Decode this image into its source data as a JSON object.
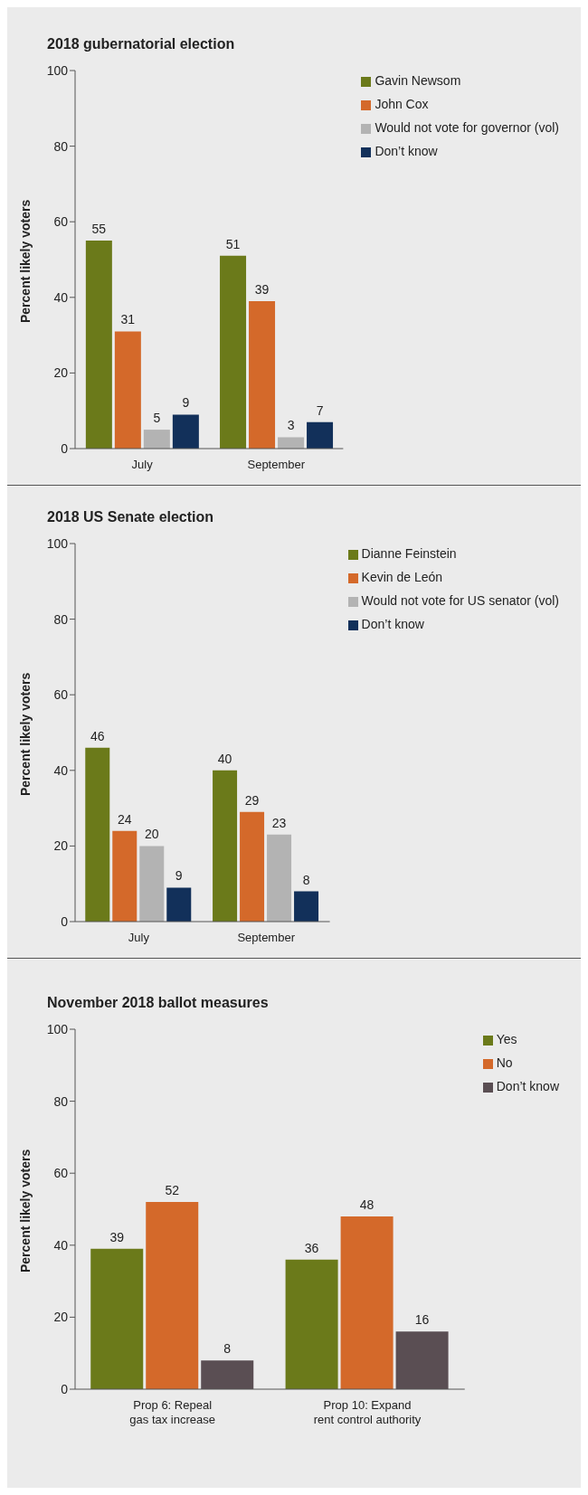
{
  "chart_data": [
    {
      "type": "bar",
      "title": "2018 gubernatorial election",
      "ylabel": "Percent likely voters",
      "categories": [
        "July",
        "September"
      ],
      "series": [
        {
          "name": "Gavin Newsom",
          "color": "#6b7a1a",
          "values": [
            55,
            51
          ]
        },
        {
          "name": "John Cox",
          "color": "#d4692a",
          "values": [
            31,
            39
          ]
        },
        {
          "name": "Would not vote for governor (vol)",
          "color": "#b3b3b3",
          "values": [
            5,
            3
          ]
        },
        {
          "name": "Don’t know",
          "color": "#12305a",
          "values": [
            9,
            7
          ]
        }
      ],
      "ylim": [
        0,
        100
      ],
      "yticks": [
        0,
        20,
        40,
        60,
        80,
        100
      ],
      "grid": false,
      "legend": "top right",
      "data_labels": true
    },
    {
      "type": "bar",
      "title": "2018 US Senate election",
      "ylabel": "Percent likely voters",
      "categories": [
        "July",
        "September"
      ],
      "series": [
        {
          "name": "Dianne Feinstein",
          "color": "#6b7a1a",
          "values": [
            46,
            40
          ]
        },
        {
          "name": "Kevin de León",
          "color": "#d4692a",
          "values": [
            24,
            29
          ]
        },
        {
          "name": "Would not vote for US senator (vol)",
          "color": "#b3b3b3",
          "values": [
            20,
            23
          ]
        },
        {
          "name": "Don’t know",
          "color": "#12305a",
          "values": [
            9,
            8
          ]
        }
      ],
      "ylim": [
        0,
        100
      ],
      "yticks": [
        0,
        20,
        40,
        60,
        80,
        100
      ],
      "grid": false,
      "legend": "top right",
      "data_labels": true
    },
    {
      "type": "bar",
      "title": "November 2018 ballot measures",
      "ylabel": "Percent likely voters",
      "categories": [
        "Prop 6: Repeal\ngas tax increase",
        "Prop 10: Expand\nrent control authority"
      ],
      "series": [
        {
          "name": "Yes",
          "color": "#6b7a1a",
          "values": [
            39,
            36
          ]
        },
        {
          "name": "No",
          "color": "#d4692a",
          "values": [
            52,
            48
          ]
        },
        {
          "name": "Don’t know",
          "color": "#5a4e53",
          "values": [
            8,
            16
          ]
        }
      ],
      "ylim": [
        0,
        100
      ],
      "yticks": [
        0,
        20,
        40,
        60,
        80,
        100
      ],
      "grid": false,
      "legend": "top right",
      "data_labels": true
    }
  ]
}
